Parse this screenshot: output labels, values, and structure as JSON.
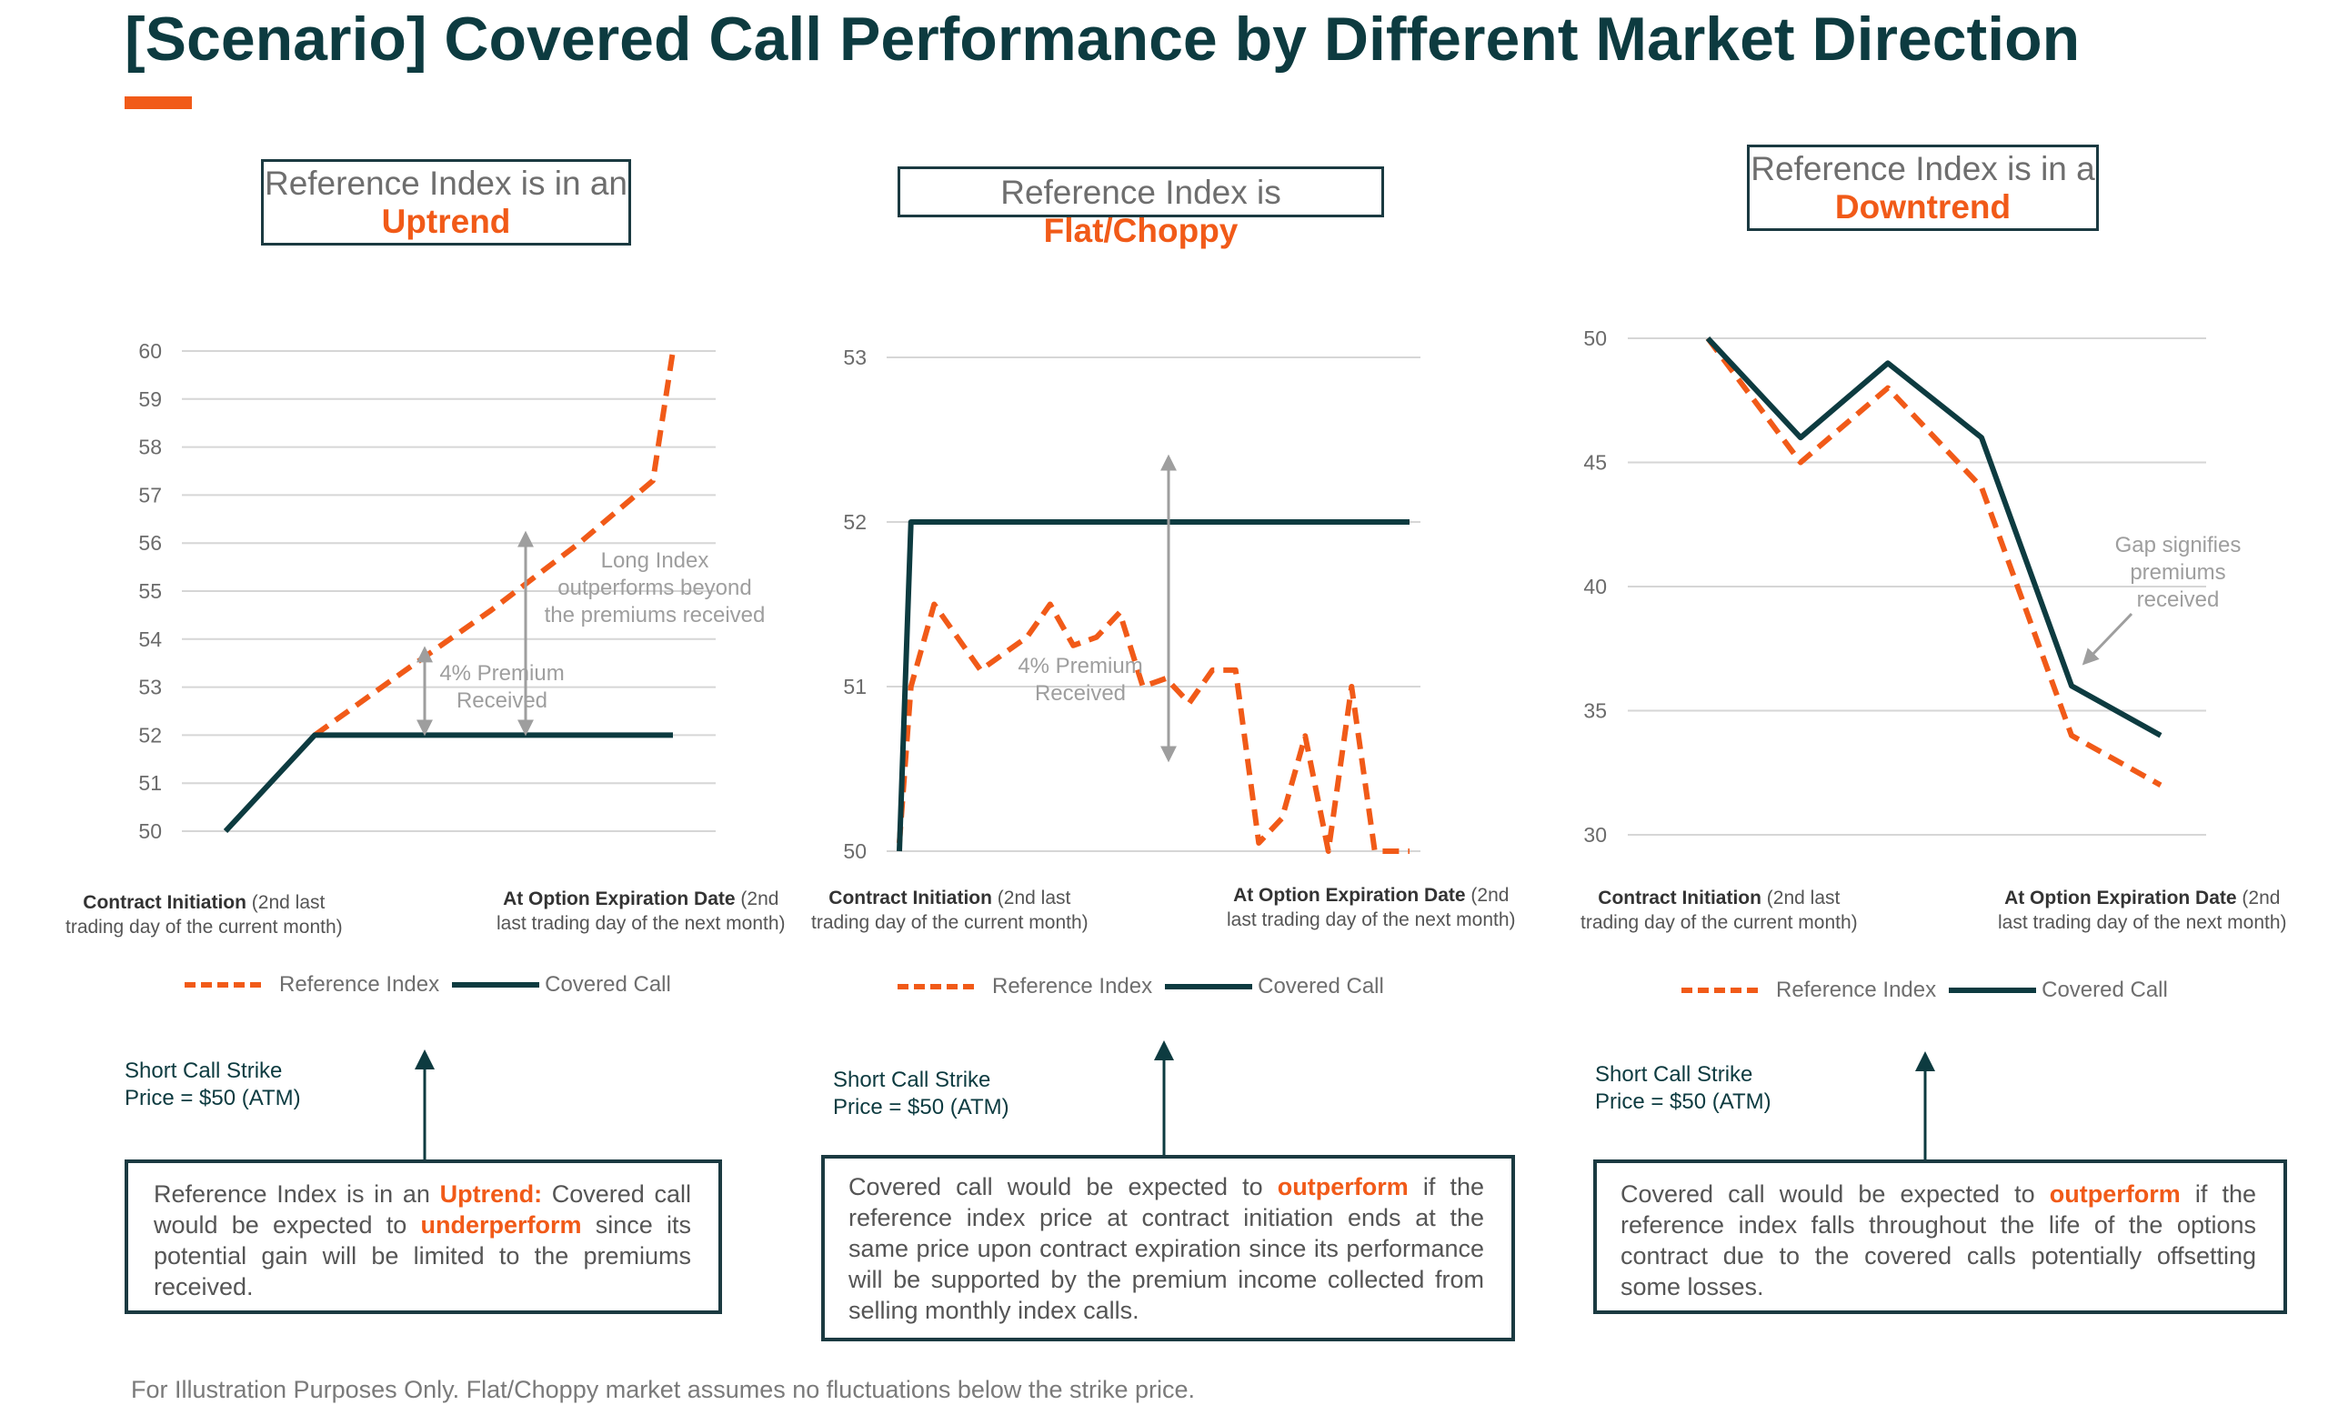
{
  "page": {
    "title": "[Scenario] Covered Call Performance by Different Market Direction",
    "footnote": "For Illustration Purposes Only. Flat/Choppy market assumes no fluctuations below the strike price.",
    "colors": {
      "accent": "#f15a18",
      "dark": "#0d3b40",
      "grid": "#d6d6d6",
      "annotation": "#9e9e9e"
    }
  },
  "scenarios": [
    {
      "header_prefix": "Reference Index is in an",
      "header_highlight": "Uptrend",
      "x_label_left_bold": "Contract Initiation",
      "x_label_left_rest": " (2nd last",
      "x_label_left_line2": "trading day of the current month)",
      "x_label_right_bold": "At Option Expiration Date",
      "x_label_right_rest": " (2nd",
      "x_label_right_line2": "last trading day of the next month)",
      "legend_ref": "Reference Index",
      "legend_cc": "Covered Call",
      "strike_line1": "Short Call Strike",
      "strike_line2": "Price = $50 (ATM)",
      "desc_a": "Reference Index is in an ",
      "desc_b": "Uptrend:",
      "desc_c": " Covered call would be expected to ",
      "desc_d": "underperform",
      "desc_e": " since its potential gain will be limited to the premiums received."
    },
    {
      "header_prefix": "Reference Index is ",
      "header_highlight": "Flat/Choppy",
      "x_label_left_bold": "Contract Initiation",
      "x_label_left_rest": " (2nd last",
      "x_label_left_line2": "trading day of the current month)",
      "x_label_right_bold": "At Option Expiration Date",
      "x_label_right_rest": " (2nd",
      "x_label_right_line2": "last trading day of the next month)",
      "legend_ref": "Reference Index",
      "legend_cc": "Covered Call",
      "strike_line1": "Short Call Strike",
      "strike_line2": "Price = $50 (ATM)",
      "desc_a": "Covered call would be expected to ",
      "desc_b": "outperform",
      "desc_c": " if the reference index price at contract initiation ends at the same price upon contract expiration since its performance will be supported by the premium income collected from selling monthly index calls."
    },
    {
      "header_prefix": "Reference Index is in a",
      "header_highlight": "Downtrend",
      "x_label_left_bold": "Contract Initiation",
      "x_label_left_rest": " (2nd last",
      "x_label_left_line2": "trading day of the current month)",
      "x_label_right_bold": "At Option Expiration Date",
      "x_label_right_rest": " (2nd",
      "x_label_right_line2": "last trading day of the next month)",
      "legend_ref": "Reference Index",
      "legend_cc": "Covered Call",
      "strike_line1": "Short Call Strike",
      "strike_line2": "Price = $50 (ATM)",
      "desc_a": "Covered call would be expected to ",
      "desc_b": "outperform",
      "desc_c": " if the reference index falls throughout the life of the options contract due to the covered calls potentially offsetting some losses."
    }
  ],
  "chart_data": [
    {
      "type": "line",
      "ylim": [
        50,
        60
      ],
      "y_ticks": [
        50,
        51,
        52,
        53,
        54,
        55,
        56,
        57,
        58,
        59,
        60
      ],
      "x": [
        0,
        1,
        2,
        3,
        4,
        5,
        6
      ],
      "series": [
        {
          "name": "Reference Index",
          "style": "dashed",
          "color": "#f15a18",
          "values": [
            null,
            52,
            53.3,
            54.6,
            56,
            57.3,
            60
          ]
        },
        {
          "name": "Covered Call",
          "style": "solid",
          "color": "#0d3b40",
          "values": [
            50,
            52,
            52,
            52,
            52,
            52,
            52
          ]
        }
      ],
      "annotations": [
        {
          "text_line1": "4% Premium",
          "text_line2": "Received",
          "arrow_x": 2.0,
          "from": 52,
          "to": 53.8
        },
        {
          "text_line1": "Long Index",
          "text_line2": "outperforms beyond",
          "text_line3": "the premiums received",
          "arrow_x": 3.3,
          "from": 52,
          "to": 56.2
        }
      ],
      "grid": true
    },
    {
      "type": "line",
      "ylim": [
        50,
        53
      ],
      "y_ticks": [
        50,
        51,
        52,
        53
      ],
      "x": [
        0,
        0.25,
        0.75,
        1.25,
        1.75,
        2.25,
        2.75,
        3.25,
        3.75,
        4.25,
        4.75,
        5.25,
        5.75,
        6.25,
        6.75,
        7.25,
        7.75,
        8.25,
        8.75,
        9.25,
        9.75,
        10.25,
        10.75,
        11.0
      ],
      "series": [
        {
          "name": "Reference Index",
          "style": "dashed",
          "color": "#f15a18",
          "values": [
            50.05,
            51.0,
            51.5,
            51.3,
            51.1,
            51.2,
            51.3,
            51.5,
            51.25,
            51.3,
            51.45,
            51.0,
            51.05,
            50.9,
            51.1,
            51.1,
            50.05,
            50.2,
            50.7,
            50.0,
            51.0,
            50.0,
            50.0,
            50.0
          ]
        },
        {
          "name": "Covered Call",
          "style": "solid",
          "color": "#0d3b40",
          "values": [
            50.0,
            52.0,
            52.0,
            52.0,
            52.0,
            52.0,
            52.0,
            52.0,
            52.0,
            52.0,
            52.0,
            52.0,
            52.0,
            52.0,
            52.0,
            52.0,
            52.0,
            52.0,
            52.0,
            52.0,
            52.0,
            52.0,
            52.0,
            52.0
          ]
        }
      ],
      "annotations": [
        {
          "text_line1": "4% Premium",
          "text_line2": "Received",
          "arrow_x": 5.3,
          "from": 50.6,
          "to": 52.35
        }
      ],
      "grid": true
    },
    {
      "type": "line",
      "ylim": [
        30,
        50
      ],
      "y_ticks": [
        30,
        35,
        40,
        45,
        50
      ],
      "x": [
        0,
        1,
        2,
        3,
        4,
        5
      ],
      "series": [
        {
          "name": "Reference Index",
          "style": "dashed",
          "color": "#f15a18",
          "values": [
            50,
            45,
            48,
            44,
            34,
            32
          ]
        },
        {
          "name": "Covered Call",
          "style": "solid",
          "color": "#0d3b40",
          "values": [
            50,
            46,
            49,
            46,
            36,
            34
          ]
        }
      ],
      "annotations": [
        {
          "text_line1": "Gap signifies",
          "text_line2": "premiums",
          "text_line3": "received"
        }
      ],
      "grid": true
    }
  ]
}
